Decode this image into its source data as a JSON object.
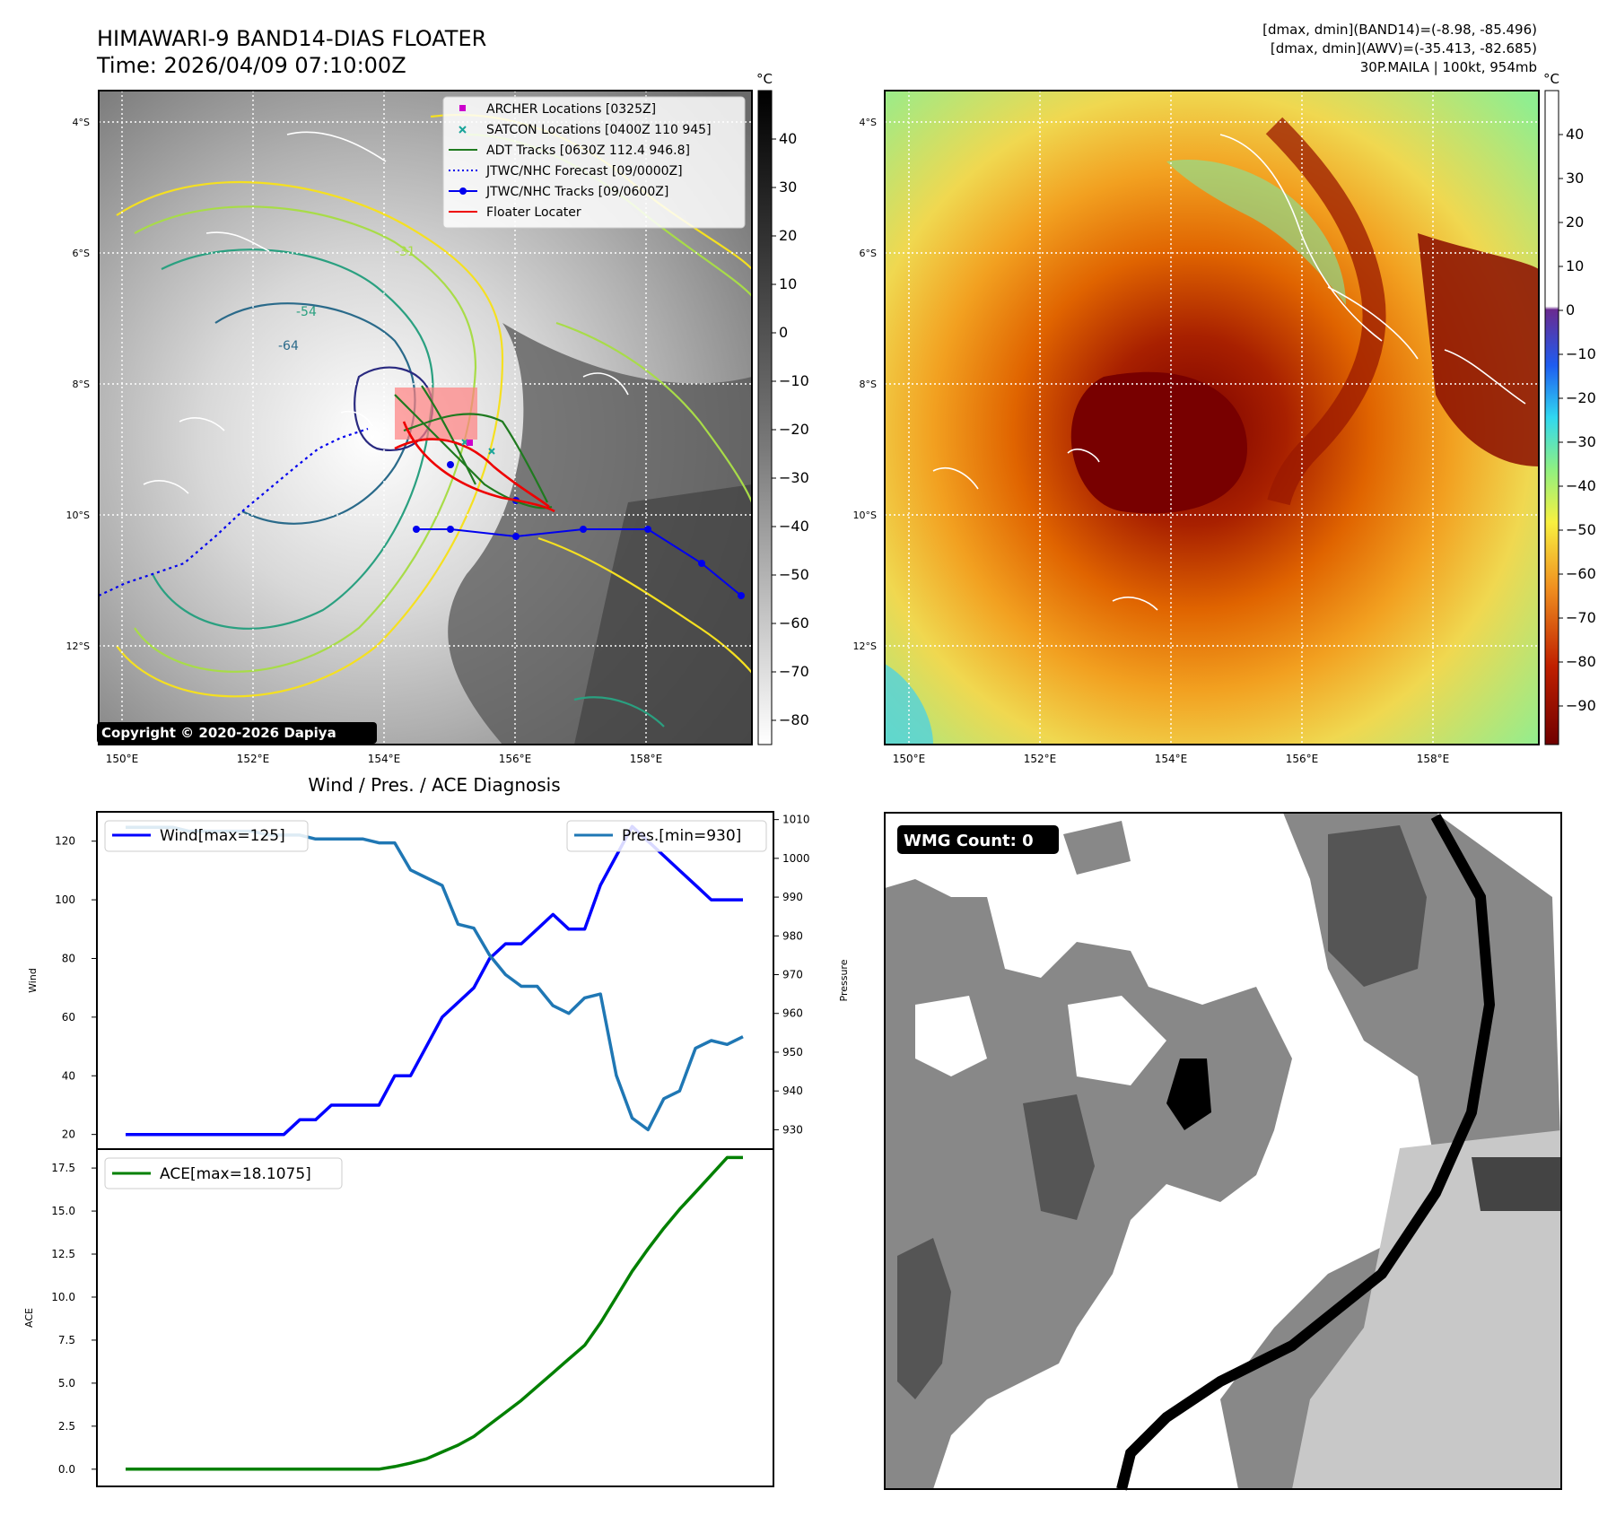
{
  "header": {
    "title_line1": "HIMAWARI-9 BAND14-DIAS FLOATER",
    "title_line2": "Time: 2026/04/09 07:10:00Z",
    "info_line1": "[dmax, dmin](BAND14)=(-8.98, -85.496)",
    "info_line2": "[dmax, dmin](AWV)=(-35.413, -82.685)",
    "info_line3": "30P.MAILA | 100kt, 954mb"
  },
  "map_panels": {
    "lat_labels": [
      "4°S",
      "6°S",
      "8°S",
      "10°S",
      "12°S"
    ],
    "lon_labels": [
      "150°E",
      "152°E",
      "154°E",
      "156°E",
      "158°E"
    ],
    "copyright": "Copyright © 2020-2026 Dapiya",
    "colorbar_unit": "°C",
    "contour_labels": [
      "-31",
      "-54",
      "-64"
    ],
    "left_colorbar_ticks": [
      "40",
      "30",
      "20",
      "10",
      "0",
      "−10",
      "−20",
      "−30",
      "−40",
      "−50",
      "−60",
      "−70",
      "−80"
    ],
    "right_colorbar_ticks": [
      "40",
      "30",
      "20",
      "10",
      "0",
      "−10",
      "−20",
      "−30",
      "−40",
      "−50",
      "−60",
      "−70",
      "−80",
      "−90"
    ],
    "legend": [
      {
        "label": "ARCHER Locations [0325Z]",
        "color": "#cc00cc"
      },
      {
        "label": "SATCON Locations [0400Z 110 945]",
        "color": "#1aa59a"
      },
      {
        "label": "ADT Tracks [0630Z 112.4 946.8]",
        "color": "#1f7a1f"
      },
      {
        "label": "JTWC/NHC Forecast [09/0000Z]",
        "color": "#0000ee"
      },
      {
        "label": "JTWC/NHC Tracks [09/0600Z]",
        "color": "#0000ee"
      },
      {
        "label": "Floater Locater",
        "color": "#ee0000"
      }
    ]
  },
  "diagnosis": {
    "title": "Wind / Pres. / ACE Diagnosis",
    "wind_axis_label": "Wind",
    "pressure_axis_label": "Pressure",
    "ace_axis_label": "ACE",
    "wind_legend": "Wind[max=125]",
    "pressure_legend": "Pres.[min=930]",
    "ace_legend": "ACE[max=18.1075]",
    "wind_ticks": [
      "120",
      "100",
      "80",
      "60",
      "40",
      "20"
    ],
    "pressure_ticks": [
      "1010",
      "1000",
      "990",
      "980",
      "970",
      "960",
      "950",
      "940",
      "930"
    ],
    "ace_ticks": [
      "17.5",
      "15.0",
      "12.5",
      "10.0",
      "7.5",
      "5.0",
      "2.5",
      "0.0"
    ]
  },
  "wmg": {
    "label": "WMG Count: 0"
  },
  "chart_data": [
    {
      "type": "line",
      "title": "Wind / Pres. / ACE Diagnosis",
      "ylabel": "Wind",
      "ylim": [
        15,
        130
      ],
      "series": [
        {
          "name": "Wind[max=125]",
          "color": "#0000ff",
          "values": [
            20,
            20,
            20,
            20,
            20,
            20,
            20,
            20,
            20,
            20,
            20,
            25,
            25,
            30,
            30,
            30,
            30,
            40,
            40,
            50,
            60,
            65,
            70,
            80,
            85,
            85,
            90,
            95,
            90,
            90,
            105,
            115,
            125,
            120,
            115,
            110,
            105,
            100,
            100,
            100
          ]
        }
      ]
    },
    {
      "type": "line",
      "ylabel": "Pressure",
      "ylim": [
        925,
        1012
      ],
      "series": [
        {
          "name": "Pres.[min=930]",
          "color": "#1f77b4",
          "values": [
            1008,
            1008,
            1008,
            1008,
            1007,
            1007,
            1007,
            1007,
            1007,
            1006,
            1006,
            1006,
            1005,
            1005,
            1005,
            1005,
            1004,
            1004,
            997,
            995,
            993,
            983,
            982,
            975,
            970,
            967,
            967,
            962,
            960,
            964,
            965,
            944,
            933,
            930,
            938,
            940,
            951,
            953,
            952,
            954
          ]
        }
      ]
    },
    {
      "type": "line",
      "ylabel": "ACE",
      "ylim": [
        -1,
        18.6
      ],
      "series": [
        {
          "name": "ACE[max=18.1075]",
          "color": "#008000",
          "values": [
            0,
            0,
            0,
            0,
            0,
            0,
            0,
            0,
            0,
            0,
            0,
            0,
            0,
            0,
            0,
            0,
            0,
            0.15,
            0.35,
            0.6,
            1.0,
            1.4,
            1.9,
            2.6,
            3.3,
            4.0,
            4.8,
            5.6,
            6.4,
            7.2,
            8.5,
            10.0,
            11.5,
            12.8,
            14.0,
            15.1,
            16.1,
            17.1,
            18.1075,
            18.1075
          ]
        }
      ]
    }
  ]
}
